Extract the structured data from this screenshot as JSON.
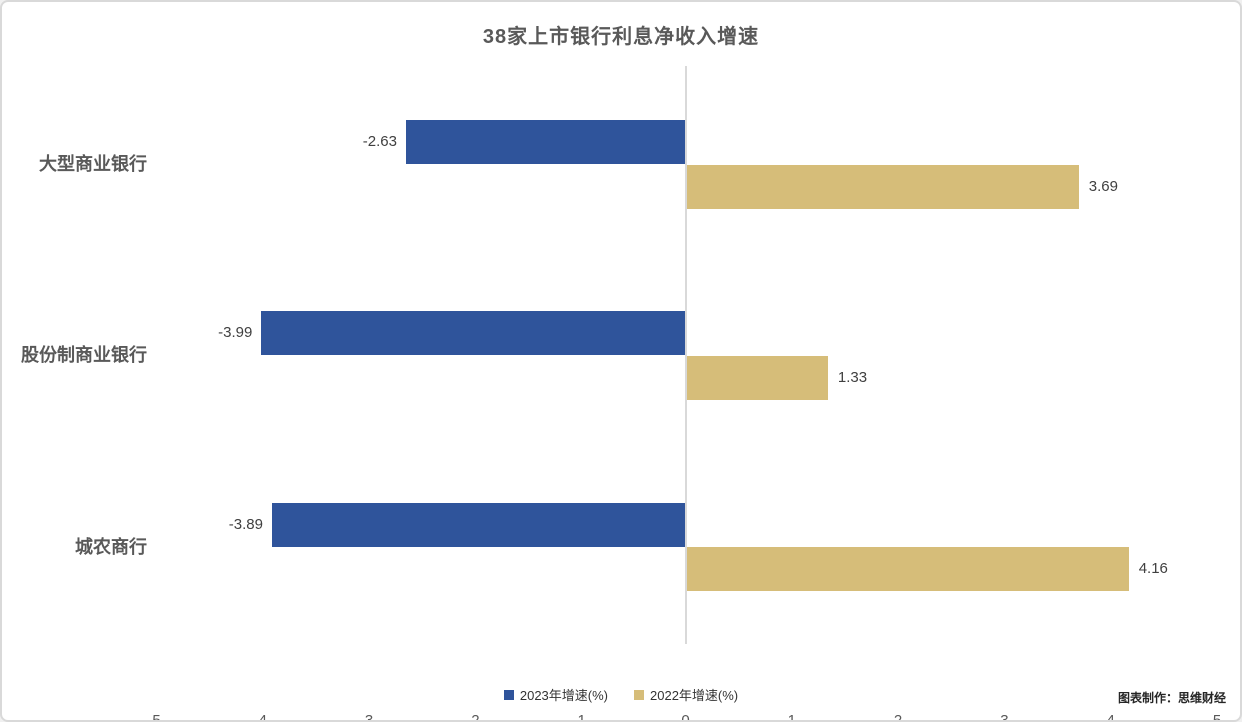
{
  "credit": "图表制作：思维财经",
  "colors": {
    "series_2023": "#2f549b",
    "series_2022": "#d6bd79",
    "axis_line": "#d9d9d9",
    "title_text": "#595959",
    "label_text": "#404040"
  },
  "chart_data": {
    "type": "bar",
    "orientation": "horizontal",
    "title": "38家上市银行利息净收入增速",
    "categories": [
      "大型商业银行",
      "股份制商业银行",
      "城农商行"
    ],
    "series": [
      {
        "name": "2023年增速(%)",
        "color": "#2f549b",
        "values": [
          -2.63,
          -3.99,
          -3.89
        ]
      },
      {
        "name": "2022年增速(%)",
        "color": "#d6bd79",
        "values": [
          3.69,
          1.33,
          4.16
        ]
      }
    ],
    "xlim": [
      -5,
      5
    ],
    "xticks": [
      -5,
      -4,
      -3,
      -2,
      -1,
      0,
      1,
      2,
      3,
      4,
      5
    ],
    "value_labels": true,
    "grid": false,
    "legend_position": "bottom"
  }
}
